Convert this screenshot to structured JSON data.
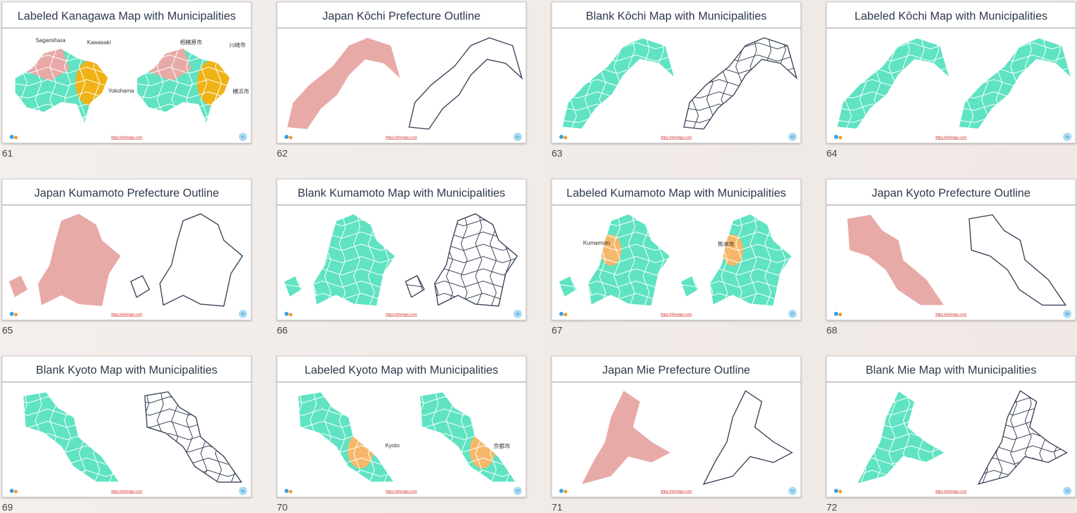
{
  "slides": [
    {
      "number": 61,
      "title": "Labeled Kanagawa Map with Municipalities",
      "labels": [
        "Sagamihara",
        "Kawasaki",
        "Yokohama",
        "相模原市",
        "川崎市",
        "横浜市"
      ]
    },
    {
      "number": 62,
      "title": "Japan Kōchi Prefecture Outline"
    },
    {
      "number": 63,
      "title": "Blank Kōchi Map with Municipalities"
    },
    {
      "number": 64,
      "title": "Labeled Kōchi Map with Municipalities"
    },
    {
      "number": 65,
      "title": "Japan Kumamoto Prefecture Outline"
    },
    {
      "number": 66,
      "title": "Blank Kumamoto Map with Municipalities"
    },
    {
      "number": 67,
      "title": "Labeled Kumamoto Map with Municipalities",
      "labels": [
        "Kumamoto",
        "熊本市"
      ]
    },
    {
      "number": 68,
      "title": "Japan Kyoto Prefecture Outline"
    },
    {
      "number": 69,
      "title": "Blank Kyoto Map with Municipalities"
    },
    {
      "number": 70,
      "title": "Labeled Kyoto Map with Municipalities",
      "labels": [
        "Kyoto",
        "京都市"
      ]
    },
    {
      "number": 71,
      "title": "Japan Mie Prefecture Outline"
    },
    {
      "number": 72,
      "title": "Blank Mie Map with Municipalities"
    }
  ],
  "footer_url": "https://ofomaps.com"
}
